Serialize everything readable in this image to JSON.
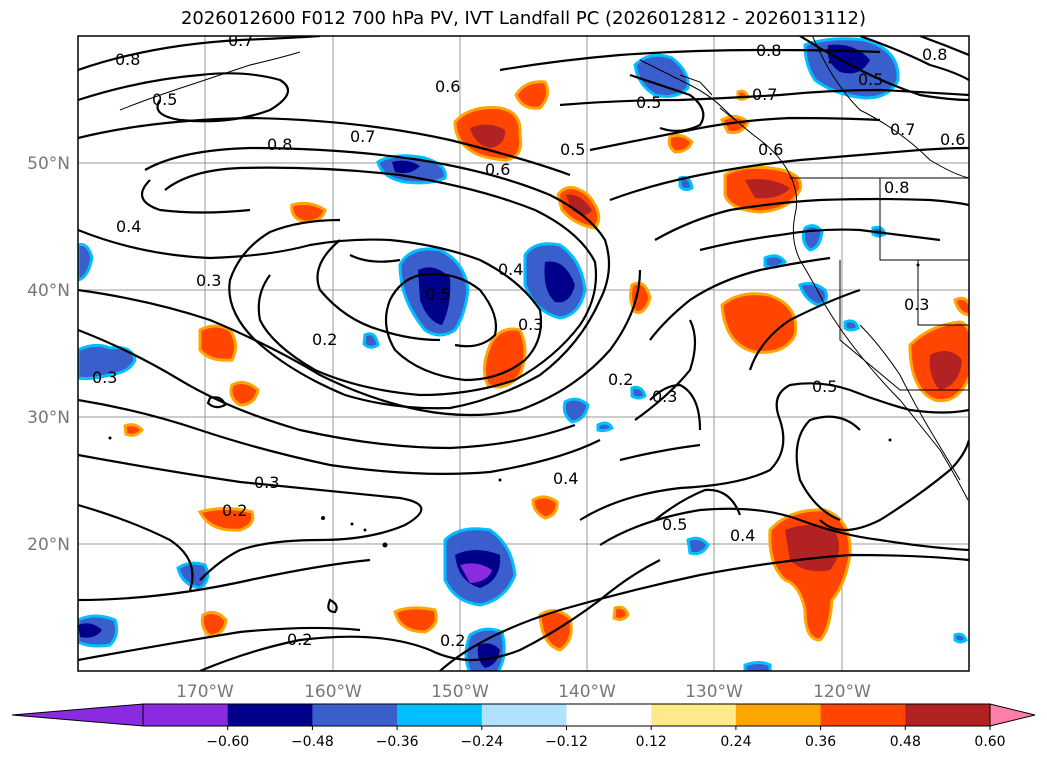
{
  "title": "2026012600 F012 700 hPa PV, IVT Landfall PC (2026012812 - 2026013112)",
  "lon_labels": [
    "170°W",
    "160°W",
    "150°W",
    "140°W",
    "130°W",
    "120°W"
  ],
  "lat_labels": [
    "50°N",
    "40°N",
    "30°N",
    "20°N"
  ],
  "colorbar": {
    "tick_labels": [
      "−0.60",
      "−0.48",
      "−0.36",
      "−0.24",
      "−0.12",
      "0.12",
      "0.24",
      "0.36",
      "0.48",
      "0.60"
    ],
    "colors": [
      "#8a2be2",
      "#00008b",
      "#3a5fcd",
      "#00bfff",
      "#b0e2ff",
      "#ffffff",
      "#ffe98a",
      "#ffa500",
      "#ff4500",
      "#b22222",
      "#ff7fa8"
    ],
    "extend_low_color": "#8a2be2",
    "extend_high_color": "#ff7fa8"
  },
  "contour_labels": [
    {
      "text": "0.8"
    },
    {
      "text": "0.7"
    },
    {
      "text": "0.5"
    },
    {
      "text": "0.6"
    },
    {
      "text": "0.7"
    },
    {
      "text": "0.8"
    },
    {
      "text": "0.5"
    },
    {
      "text": "0.6"
    },
    {
      "text": "0.4"
    },
    {
      "text": "0.5"
    },
    {
      "text": "0.4"
    },
    {
      "text": "0.3"
    },
    {
      "text": "0.3"
    },
    {
      "text": "0.2"
    },
    {
      "text": "0.3"
    },
    {
      "text": "0.2"
    },
    {
      "text": "0.2"
    },
    {
      "text": "0.3"
    },
    {
      "text": "0.4"
    },
    {
      "text": "0.5"
    },
    {
      "text": "0.4"
    },
    {
      "text": "0.2"
    },
    {
      "text": "0.2"
    },
    {
      "text": "0.3"
    },
    {
      "text": "0.3"
    },
    {
      "text": "0.5"
    },
    {
      "text": "0.8"
    },
    {
      "text": "0.7"
    },
    {
      "text": "0.8"
    },
    {
      "text": "0.5"
    },
    {
      "text": "0.6"
    },
    {
      "text": "0.5"
    },
    {
      "text": "0.7"
    },
    {
      "text": "0.6"
    },
    {
      "text": "0.8"
    }
  ],
  "map": {
    "projection": "PlateCarree",
    "lon_range": [
      -180,
      -110
    ],
    "lat_range": [
      10,
      60
    ],
    "gridlines": true,
    "contour_field": "700 hPa PV",
    "fill_field": "IVT Landfall PC"
  }
}
